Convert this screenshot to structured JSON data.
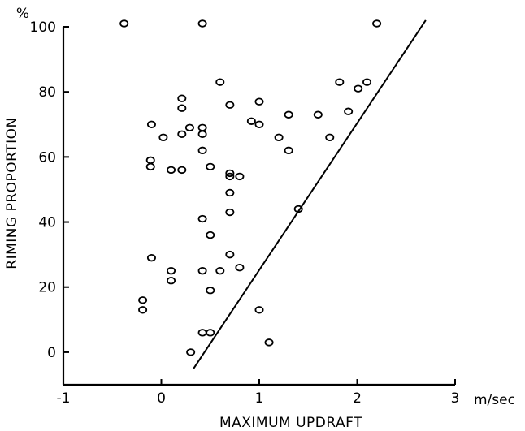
{
  "chart_data": {
    "type": "scatter",
    "title": "",
    "xlabel": "MAXIMUM UPDRAFT",
    "ylabel": "RIMING PROPORTION",
    "x_unit_label": "m/sec",
    "y_unit_label": "%",
    "xlim": [
      -1,
      3
    ],
    "ylim": [
      -10,
      100
    ],
    "x_ticks": [
      -1,
      0,
      1,
      2,
      3
    ],
    "x_tick_labels": [
      "-1",
      "0",
      "1",
      "2",
      "3"
    ],
    "y_ticks": [
      0,
      20,
      40,
      60,
      80,
      100
    ],
    "y_tick_labels": [
      "0",
      "20",
      "40",
      "60",
      "80",
      "100"
    ],
    "grid": false,
    "legend": "none",
    "series": [
      {
        "x": [
          -0.38,
          0.42,
          2.2,
          0.6,
          0.21,
          0.21,
          0.29,
          0.42,
          0.42,
          0.21,
          -0.1,
          0.02,
          0.42,
          -0.11,
          -0.11,
          0.1,
          0.21,
          0.5,
          0.7,
          0.7,
          0.7,
          0.8,
          0.7,
          0.7,
          0.42,
          0.5,
          0.7,
          0.8,
          0.6,
          0.42,
          0.5,
          -0.1,
          0.1,
          0.1,
          -0.19,
          -0.19,
          0.42,
          0.5,
          0.3,
          1.0,
          1.1,
          0.92,
          1.0,
          1.0,
          1.2,
          1.3,
          1.3,
          1.6,
          1.72,
          1.82,
          1.91,
          2.01,
          2.1,
          1.4
        ],
        "y": [
          101,
          101,
          101,
          83,
          78,
          75,
          69,
          69,
          67,
          67,
          70,
          66,
          62,
          59,
          57,
          56,
          56,
          57,
          55,
          54,
          49,
          54,
          43,
          30,
          41,
          36,
          76,
          26,
          25,
          25,
          19,
          29,
          25,
          22,
          16,
          13,
          6,
          6,
          0,
          13,
          3,
          71,
          77,
          70,
          66,
          73,
          62,
          73,
          66,
          83,
          74,
          81,
          83,
          44
        ]
      }
    ],
    "fit_line": {
      "x": [
        0.33,
        2.7
      ],
      "y": [
        -5,
        102
      ]
    }
  }
}
